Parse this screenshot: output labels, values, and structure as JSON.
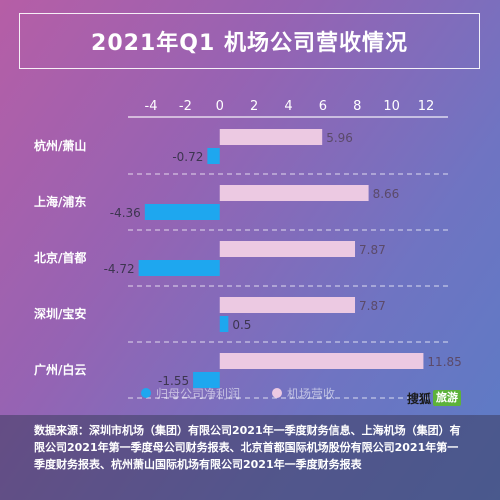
{
  "title": "2021年Q1 机场公司营收情况",
  "logo": {
    "brand": "搜狐",
    "tag": "旅游"
  },
  "source_text": "数据来源：深圳市机场（集团）有限公司2021年一季度财务信息、上海机场（集团）有限公司2021年第一季度母公司财务报表、北京首都国际机场股份有限公司2021年第一季度财务报表、杭州萧山国际机场有限公司2021年一季度财务报表",
  "colors": {
    "revenue": "#ecc9e2",
    "profit": "#1ea7ef",
    "axis_text": "#ffffff"
  },
  "chart_data": {
    "type": "bar",
    "orientation": "horizontal",
    "categories": [
      "杭州/萧山",
      "上海/浦东",
      "北京/首都",
      "深圳/宝安",
      "广州/白云"
    ],
    "series": [
      {
        "name": "机场营收",
        "color": "#ecc9e2",
        "values": [
          5.96,
          8.66,
          7.87,
          7.87,
          11.85
        ],
        "labels": [
          "5.96",
          "8.66",
          "7.87",
          "7.87",
          "11.85"
        ]
      },
      {
        "name": "归母公司净利润",
        "color": "#1ea7ef",
        "values": [
          -0.72,
          -4.36,
          -4.72,
          0.5,
          -1.55
        ],
        "labels": [
          "-0.72",
          "-4.36",
          "-4.72",
          "0.5",
          "-1.55"
        ]
      }
    ],
    "legend_order": [
      "归母公司净利润",
      "机场营收"
    ],
    "xlim": [
      -4,
      12
    ],
    "xticks": [
      "-4",
      "-2",
      "0",
      "2",
      "4",
      "6",
      "8",
      "10",
      "12"
    ],
    "x_axis_position": "top",
    "legend_position": "bottom",
    "grid": false,
    "category_separators": "dashed"
  }
}
